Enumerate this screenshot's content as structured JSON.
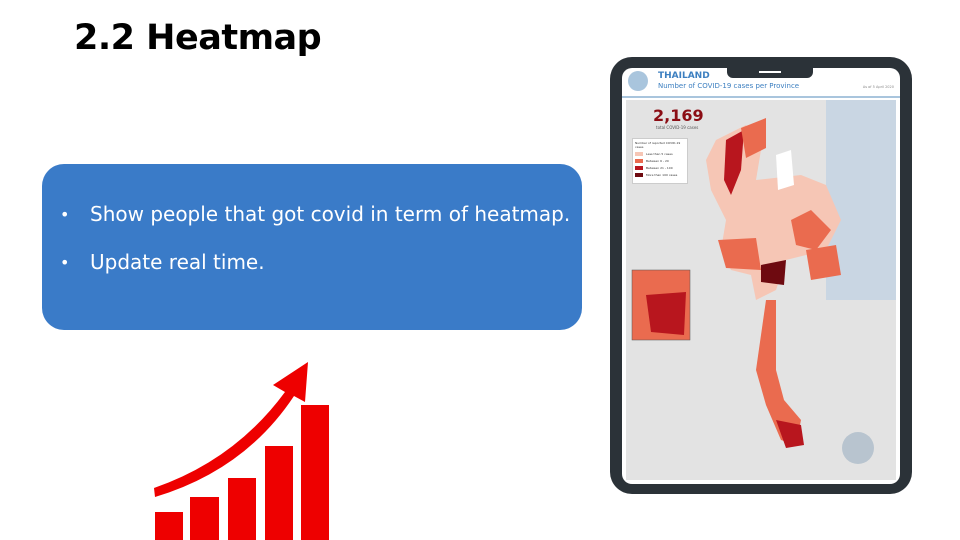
{
  "slide": {
    "title": "2.2 Heatmap",
    "bullets": [
      "Show people that got covid in term of heatmap.",
      "Update real time."
    ],
    "colors": {
      "box": "#3a7bc8",
      "bars": "#ee0000",
      "tablet": "#2b3238"
    }
  },
  "map": {
    "title": "THAILAND",
    "subtitle": "Number of COVID-19 cases per Province",
    "date": "As of 5 April 2020",
    "total": "2,169",
    "total_label": "total COVID-19 cases",
    "legend_title": "Number of reported COVID-19 cases",
    "legend": [
      {
        "label": "Less than 5 cases",
        "color": "#f6c6b5"
      },
      {
        "label": "Between 6 - 20",
        "color": "#ea6b4f"
      },
      {
        "label": "Between 21 - 100",
        "color": "#b8161e"
      },
      {
        "label": "More than 100 cases",
        "color": "#6e0a10"
      }
    ]
  }
}
